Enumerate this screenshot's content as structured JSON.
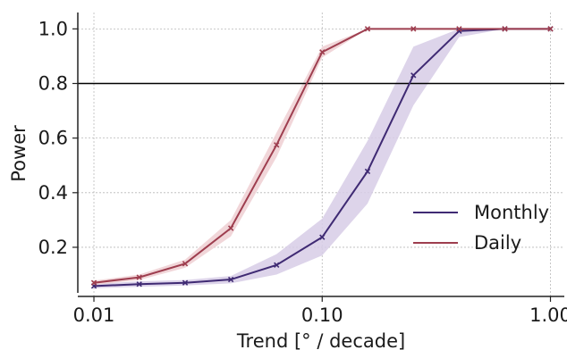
{
  "chart_data": {
    "type": "line",
    "title": "",
    "xlabel": "Trend [° / decade]",
    "ylabel": "Power",
    "xscale": "log",
    "xlim": [
      0.0085,
      1.15
    ],
    "ylim": [
      0.02,
      1.06
    ],
    "xticks": [
      {
        "value": 0.01,
        "label": "0.01"
      },
      {
        "value": 0.1,
        "label": "0.10"
      },
      {
        "value": 1.0,
        "label": "1.00"
      }
    ],
    "yticks": [
      {
        "value": 0.2,
        "label": "0.2"
      },
      {
        "value": 0.4,
        "label": "0.4"
      },
      {
        "value": 0.6,
        "label": "0.6"
      },
      {
        "value": 0.8,
        "label": "0.8"
      },
      {
        "value": 1.0,
        "label": "1.0"
      }
    ],
    "grid": true,
    "reference_line": {
      "y": 0.8,
      "color": "#000000"
    },
    "x": [
      0.01,
      0.0158,
      0.0251,
      0.0398,
      0.0631,
      0.1,
      0.158,
      0.251,
      0.398,
      0.631,
      1.0
    ],
    "series": [
      {
        "name": "Monthly",
        "color": "#3f2a73",
        "band_color": "#d7cde6",
        "values": [
          0.058,
          0.065,
          0.07,
          0.082,
          0.135,
          0.237,
          0.478,
          0.83,
          0.992,
          1.0,
          1.0
        ],
        "lower": [
          0.05,
          0.055,
          0.06,
          0.068,
          0.1,
          0.17,
          0.36,
          0.72,
          0.97,
          1.0,
          1.0
        ],
        "upper": [
          0.066,
          0.075,
          0.08,
          0.095,
          0.175,
          0.305,
          0.59,
          0.935,
          1.0,
          1.0,
          1.0
        ]
      },
      {
        "name": "Daily",
        "color": "#9e3e4f",
        "band_color": "#efcfd2",
        "values": [
          0.07,
          0.09,
          0.14,
          0.27,
          0.575,
          0.915,
          1.0,
          1.0,
          1.0,
          1.0,
          1.0
        ],
        "lower": [
          0.062,
          0.08,
          0.125,
          0.24,
          0.53,
          0.895,
          1.0,
          1.0,
          1.0,
          1.0,
          1.0
        ],
        "upper": [
          0.078,
          0.1,
          0.155,
          0.3,
          0.62,
          0.935,
          1.0,
          1.0,
          1.0,
          1.0,
          1.0
        ]
      }
    ],
    "legend": {
      "position": "lower-right",
      "entries": [
        "Monthly",
        "Daily"
      ]
    }
  }
}
